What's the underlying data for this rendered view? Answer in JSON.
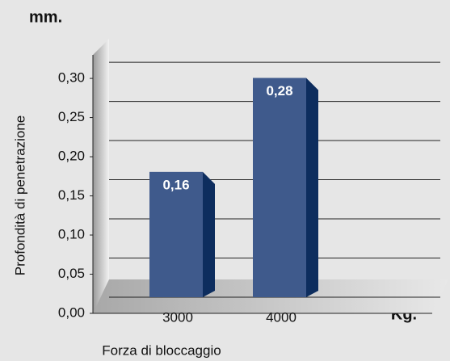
{
  "chart_data": {
    "type": "bar",
    "title": "mm.",
    "x_label": "Forza di bloccaggio",
    "x_unit": "Kg.",
    "y_label": "Profondità di penetrazione",
    "categories": [
      "3000",
      "4000"
    ],
    "values": [
      0.16,
      0.28
    ],
    "value_labels": [
      "0,16",
      "0,28"
    ],
    "color": "#3f5a8c",
    "side_color": "#0d2d5e",
    "ylim": [
      0,
      0.33
    ],
    "yticks": [
      {
        "value": 0,
        "label": "0,00"
      },
      {
        "value": 0.05,
        "label": "0,05"
      },
      {
        "value": 0.1,
        "label": "0,10"
      },
      {
        "value": 0.15,
        "label": "0,15"
      },
      {
        "value": 0.2,
        "label": "0,20"
      },
      {
        "value": 0.25,
        "label": "0,25"
      },
      {
        "value": 0.3,
        "label": "0,30"
      }
    ],
    "grid": true
  }
}
